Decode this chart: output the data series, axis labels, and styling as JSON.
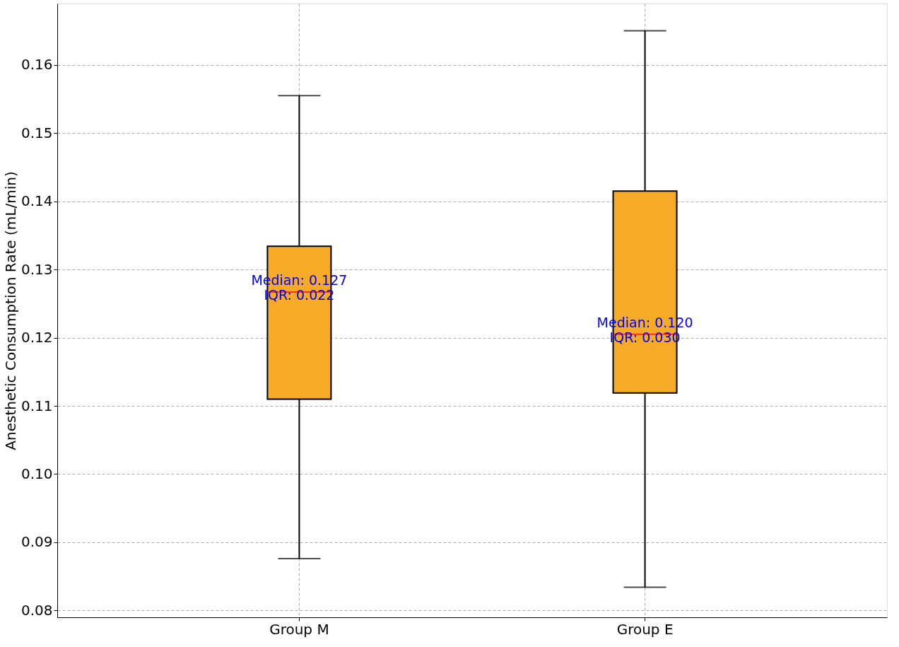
{
  "chart_data": {
    "type": "box",
    "ylabel": "Anesthetic Consumption Rate (mL/min)",
    "categories": [
      "Group M",
      "Group E"
    ],
    "boxes": [
      {
        "low": 0.0876,
        "q1": 0.111,
        "median": 0.1267,
        "q3": 0.1334,
        "high": 0.1555
      },
      {
        "low": 0.0834,
        "q1": 0.1119,
        "median": 0.1205,
        "q3": 0.1415,
        "high": 0.165
      }
    ],
    "color": "#f5aa28",
    "ylim": [
      0.079,
      0.169
    ],
    "yticks": [
      0.08,
      0.09,
      {
        "value": 0.1,
        "label": "0.10"
      },
      0.11,
      0.12,
      0.13,
      0.14,
      0.15,
      0.16
    ],
    "annotations": [
      {
        "text": "Median: 0.127\nIQR: 0.022",
        "x": "Group M",
        "y": 0.1267
      },
      {
        "text": "Median: 0.120\nIQR: 0.030",
        "x": "Group E",
        "y": 0.1205
      }
    ],
    "grid": true
  }
}
